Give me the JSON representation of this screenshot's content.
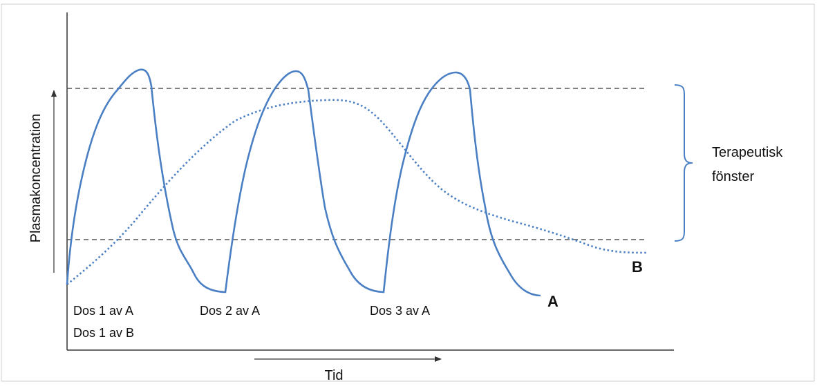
{
  "diagram": {
    "y_axis_label": "Plasmakoncentration",
    "x_axis_label": "Tid",
    "window_label_line1": "Terapeutisk",
    "window_label_line2": "fönster",
    "curve_a_label": "A",
    "curve_b_label": "B",
    "doses": {
      "dose1a": "Dos 1 av A",
      "dose1b": "Dos 1 av B",
      "dose2a": "Dos 2 av A",
      "dose3a": "Dos 3 av A"
    },
    "colors": {
      "curve": "#4a7fc4",
      "dashed_line": "#555555",
      "axis": "#333333",
      "frame": "#cfcfcf"
    }
  }
}
